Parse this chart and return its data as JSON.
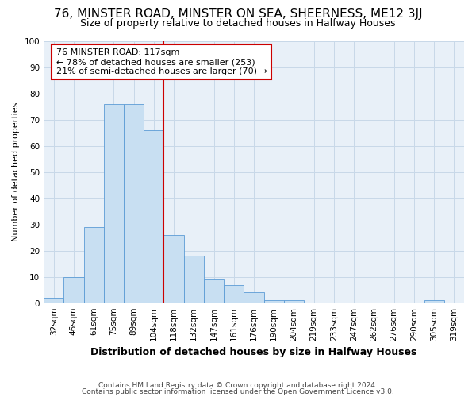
{
  "title1": "76, MINSTER ROAD, MINSTER ON SEA, SHEERNESS, ME12 3JJ",
  "title2": "Size of property relative to detached houses in Halfway Houses",
  "xlabel": "Distribution of detached houses by size in Halfway Houses",
  "ylabel": "Number of detached properties",
  "footnote1": "Contains HM Land Registry data © Crown copyright and database right 2024.",
  "footnote2": "Contains public sector information licensed under the Open Government Licence v3.0.",
  "annotation_line1": "76 MINSTER ROAD: 117sqm",
  "annotation_line2": "← 78% of detached houses are smaller (253)",
  "annotation_line3": "21% of semi-detached houses are larger (70) →",
  "bar_color": "#c8dff2",
  "bar_edge_color": "#5b9bd5",
  "vline_color": "#cc0000",
  "annotation_box_edgecolor": "#cc0000",
  "grid_color": "#c8d8e8",
  "bg_color": "#e8f0f8",
  "categories": [
    "32sqm",
    "46sqm",
    "61sqm",
    "75sqm",
    "89sqm",
    "104sqm",
    "118sqm",
    "132sqm",
    "147sqm",
    "161sqm",
    "176sqm",
    "190sqm",
    "204sqm",
    "219sqm",
    "233sqm",
    "247sqm",
    "262sqm",
    "276sqm",
    "290sqm",
    "305sqm",
    "319sqm"
  ],
  "values": [
    2,
    10,
    29,
    76,
    76,
    66,
    26,
    18,
    9,
    7,
    4,
    1,
    1,
    0,
    0,
    0,
    0,
    0,
    0,
    1,
    0
  ],
  "ylim": [
    0,
    100
  ],
  "vline_index": 6,
  "title1_fontsize": 11,
  "title2_fontsize": 9,
  "ylabel_fontsize": 8,
  "xlabel_fontsize": 9,
  "tick_fontsize": 7.5,
  "annot_fontsize": 8,
  "footnote_fontsize": 6.5
}
